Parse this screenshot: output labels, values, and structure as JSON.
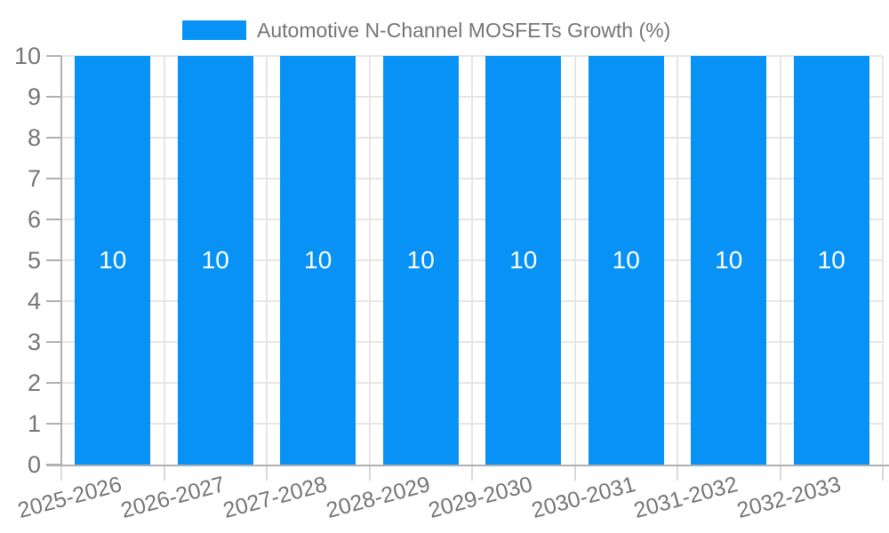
{
  "colors": {
    "bar": "#0892f5",
    "axis": "#b0b0b0",
    "grid": "#e6e6e6",
    "x_tick": "#d9d9d9",
    "text": "#757575",
    "value_label": "#ffffff",
    "background": "#ffffff"
  },
  "legend": {
    "label": "Automotive N-Channel MOSFETs Growth (%)",
    "position": "top"
  },
  "chart_data": {
    "type": "bar",
    "title": "Automotive N-Channel MOSFETs Growth (%)",
    "categories": [
      "2025-2026",
      "2026-2027",
      "2027-2028",
      "2028-2029",
      "2029-2030",
      "2030-2031",
      "2031-2032",
      "2032-2033"
    ],
    "values": [
      10,
      10,
      10,
      10,
      10,
      10,
      10,
      10
    ],
    "value_labels": [
      "10",
      "10",
      "10",
      "10",
      "10",
      "10",
      "10",
      "10"
    ],
    "xlabel": "",
    "ylabel": "",
    "ylim": [
      0,
      10
    ],
    "yticks": [
      0,
      1,
      2,
      3,
      4,
      5,
      6,
      7,
      8,
      9,
      10
    ],
    "grid": true,
    "legend_position": "top",
    "x_tick_rotation_deg": -15
  }
}
